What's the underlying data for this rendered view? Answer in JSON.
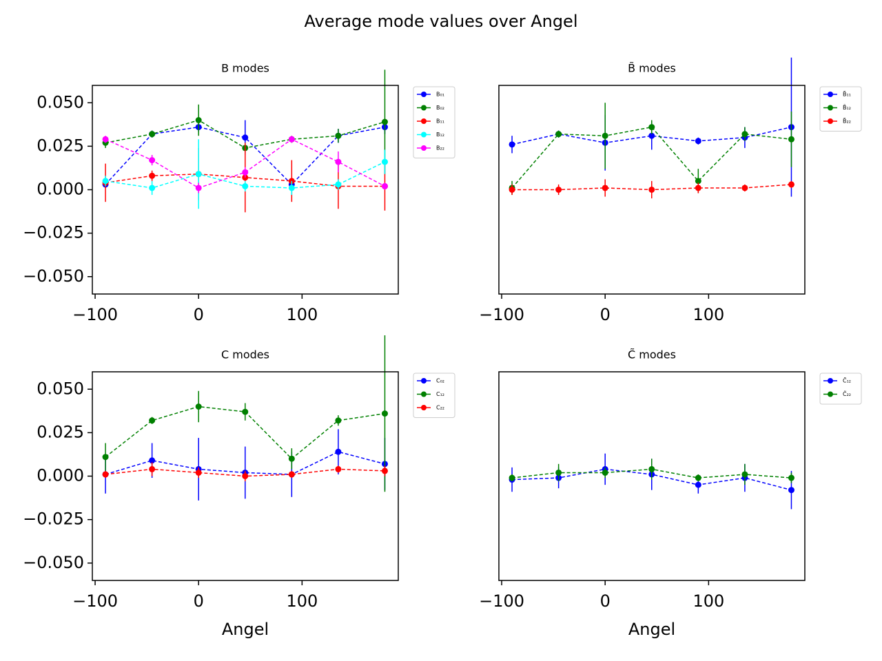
{
  "title": "Average mode values over Angel",
  "chart_data": [
    {
      "type": "errorbar",
      "title": "B modes",
      "linestyle": "dashed",
      "x": [
        -90,
        -45,
        0,
        45,
        90,
        135,
        180
      ],
      "xlim": [
        -102.7,
        193
      ],
      "ylim": [
        -0.06,
        0.06
      ],
      "xticks": [
        {
          "value": -100,
          "label": "−100"
        },
        0,
        100
      ],
      "yticks": [
        {
          "value": -0.05,
          "label": "−0.050"
        },
        {
          "value": -0.025,
          "label": "−0.025"
        },
        {
          "value": 0,
          "label": "0.000"
        },
        {
          "value": 0.025,
          "label": "0.025"
        },
        {
          "value": 0.05,
          "label": "0.050"
        }
      ],
      "series": [
        {
          "name": "B₀₁",
          "color": "#0000ff",
          "values": [
            0.003,
            0.032,
            0.036,
            0.03,
            0.003,
            0.031,
            0.036
          ],
          "errors": [
            0.002,
            0.002,
            0.003,
            0.01,
            0.002,
            0.004,
            0.004
          ]
        },
        {
          "name": "B₀₂",
          "color": "#008000",
          "values": [
            0.027,
            0.032,
            0.04,
            0.024,
            0.029,
            0.031,
            0.039
          ],
          "errors": [
            0.003,
            0.002,
            0.009,
            0.003,
            0.002,
            0.004,
            0.03
          ]
        },
        {
          "name": "B₁₁",
          "color": "#ff0000",
          "values": [
            0.004,
            0.008,
            0.009,
            0.007,
            0.005,
            0.002,
            0.002
          ],
          "errors": [
            0.011,
            0.003,
            0.015,
            0.02,
            0.012,
            0.013,
            0.014
          ]
        },
        {
          "name": "B₁₂",
          "color": "#00ffff",
          "values": [
            0.005,
            0.001,
            0.009,
            0.002,
            0.001,
            0.003,
            0.016
          ],
          "errors": [
            0.003,
            0.004,
            0.02,
            0.003,
            0.004,
            0.003,
            0.007
          ]
        },
        {
          "name": "B₂₂",
          "color": "#ff00ff",
          "values": [
            0.029,
            0.017,
            0.001,
            0.01,
            0.029,
            0.016,
            0.002
          ],
          "errors": [
            0.002,
            0.003,
            0.003,
            0.003,
            0.002,
            0.006,
            0.002
          ]
        }
      ]
    },
    {
      "type": "errorbar",
      "title": "B̃ modes",
      "linestyle": "dashed",
      "x": [
        -90,
        -45,
        0,
        45,
        90,
        135,
        180
      ],
      "xlim": [
        -102.7,
        193
      ],
      "ylim": [
        -0.06,
        0.06
      ],
      "xticks": [
        {
          "value": -100,
          "label": "−100"
        },
        0,
        100
      ],
      "series": [
        {
          "name": "B̃₁₁",
          "color": "#0000ff",
          "values": [
            0.026,
            0.032,
            0.027,
            0.031,
            0.028,
            0.03,
            0.036
          ],
          "errors": [
            0.005,
            0.002,
            0.016,
            0.008,
            0.002,
            0.006,
            0.04
          ]
        },
        {
          "name": "B̃₁₂",
          "color": "#008000",
          "values": [
            0.001,
            0.032,
            0.031,
            0.036,
            0.005,
            0.032,
            0.029
          ],
          "errors": [
            0.004,
            0.002,
            0.019,
            0.004,
            0.007,
            0.004,
            0.016
          ]
        },
        {
          "name": "B̃₂₂",
          "color": "#ff0000",
          "values": [
            0.0,
            0.0,
            0.001,
            0.0,
            0.001,
            0.001,
            0.003
          ],
          "errors": [
            0.003,
            0.003,
            0.005,
            0.005,
            0.003,
            0.002,
            0.002
          ]
        }
      ]
    },
    {
      "type": "errorbar",
      "title": "C modes",
      "linestyle": "dashed",
      "xlabel": "Angel",
      "x": [
        -90,
        -45,
        0,
        45,
        90,
        135,
        180
      ],
      "xlim": [
        -102.7,
        193
      ],
      "ylim": [
        -0.06,
        0.06
      ],
      "xticks": [
        {
          "value": -100,
          "label": "−100"
        },
        0,
        100
      ],
      "yticks": [
        {
          "value": -0.05,
          "label": "−0.050"
        },
        {
          "value": -0.025,
          "label": "−0.025"
        },
        {
          "value": 0,
          "label": "0.000"
        },
        {
          "value": 0.025,
          "label": "0.025"
        },
        {
          "value": 0.05,
          "label": "0.050"
        }
      ],
      "series": [
        {
          "name": "C₀₂",
          "color": "#0000ff",
          "values": [
            0.001,
            0.009,
            0.004,
            0.002,
            0.001,
            0.014,
            0.007
          ],
          "errors": [
            0.011,
            0.01,
            0.018,
            0.015,
            0.013,
            0.013,
            0.015
          ]
        },
        {
          "name": "C₁₂",
          "color": "#008000",
          "values": [
            0.011,
            0.032,
            0.04,
            0.037,
            0.01,
            0.032,
            0.036
          ],
          "errors": [
            0.008,
            0.002,
            0.009,
            0.005,
            0.006,
            0.003,
            0.045
          ]
        },
        {
          "name": "C₂₂",
          "color": "#ff0000",
          "values": [
            0.001,
            0.004,
            0.002,
            0.0,
            0.001,
            0.004,
            0.003
          ],
          "errors": [
            0.002,
            0.004,
            0.003,
            0.003,
            0.002,
            0.002,
            0.003
          ]
        }
      ]
    },
    {
      "type": "errorbar",
      "title": "C̃ modes",
      "linestyle": "dashed",
      "xlabel": "Angel",
      "x": [
        -90,
        -45,
        0,
        45,
        90,
        135,
        180
      ],
      "xlim": [
        -102.7,
        193
      ],
      "ylim": [
        -0.06,
        0.06
      ],
      "xticks": [
        {
          "value": -100,
          "label": "−100"
        },
        0,
        100
      ],
      "series": [
        {
          "name": "C̃₁₂",
          "color": "#0000ff",
          "values": [
            -0.002,
            -0.001,
            0.004,
            0.001,
            -0.005,
            -0.001,
            -0.008
          ],
          "errors": [
            0.007,
            0.006,
            0.009,
            0.009,
            0.005,
            0.008,
            0.011
          ]
        },
        {
          "name": "C̃₂₂",
          "color": "#008000",
          "values": [
            -0.001,
            0.002,
            0.002,
            0.004,
            -0.001,
            0.001,
            -0.001
          ],
          "errors": [
            0.002,
            0.005,
            0.003,
            0.006,
            0.002,
            0.006,
            0.003
          ]
        }
      ]
    }
  ]
}
